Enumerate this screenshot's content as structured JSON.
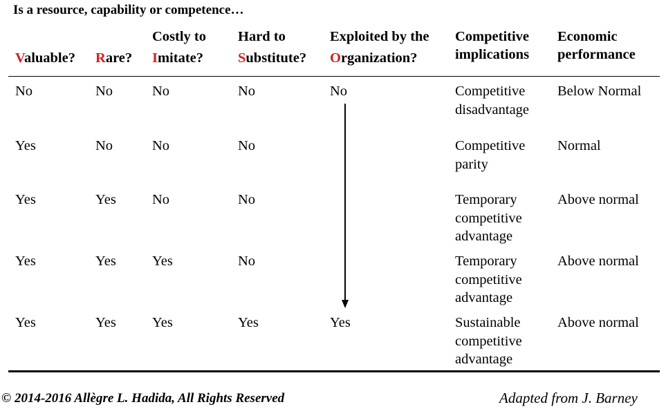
{
  "title": "Is a resource, capability or competence…",
  "headers": {
    "valuable": {
      "first": "V",
      "rest": "aluable?"
    },
    "rare": {
      "first": "R",
      "rest": "are?"
    },
    "imitate": {
      "line1": "Costly to",
      "first": "I",
      "rest": "mitate?"
    },
    "substitute": {
      "line1": "Hard to",
      "first": "S",
      "rest": "ubstitute?"
    },
    "organization": {
      "line1": "Exploited by the",
      "first": "O",
      "rest": "rganization?"
    },
    "implications": {
      "line1": "Competitive",
      "line2": "implications"
    },
    "performance": {
      "line1": "Economic",
      "line2": "performance"
    }
  },
  "rows": [
    {
      "valuable": "No",
      "rare": "No",
      "imitate": "No",
      "substitute": "No",
      "organization": "No",
      "implications": [
        "Competitive",
        "disadvantage"
      ],
      "performance": "Below Normal"
    },
    {
      "valuable": "Yes",
      "rare": "No",
      "imitate": "No",
      "substitute": "No",
      "organization": "",
      "implications": [
        "Competitive",
        "parity"
      ],
      "performance": "Normal"
    },
    {
      "valuable": "Yes",
      "rare": "Yes",
      "imitate": "No",
      "substitute": "No",
      "organization": "",
      "implications": [
        "Temporary",
        "competitive",
        "advantage"
      ],
      "performance": "Above normal"
    },
    {
      "valuable": "Yes",
      "rare": "Yes",
      "imitate": "Yes",
      "substitute": "No",
      "organization": "",
      "implications": [
        "Temporary",
        "competitive",
        "advantage"
      ],
      "performance": "Above normal"
    },
    {
      "valuable": "Yes",
      "rare": "Yes",
      "imitate": "Yes",
      "substitute": "Yes",
      "organization": "Yes",
      "implications": [
        "Sustainable",
        "competitive",
        "advantage"
      ],
      "performance": "Above normal"
    }
  ],
  "footer": {
    "copyright": "© 2014-2016 Allègre L. Hadida, All Rights Reserved",
    "credit": "Adapted from J. Barney"
  },
  "colors": {
    "accent": "#d42020",
    "text": "#000000",
    "background": "#ffffff"
  }
}
